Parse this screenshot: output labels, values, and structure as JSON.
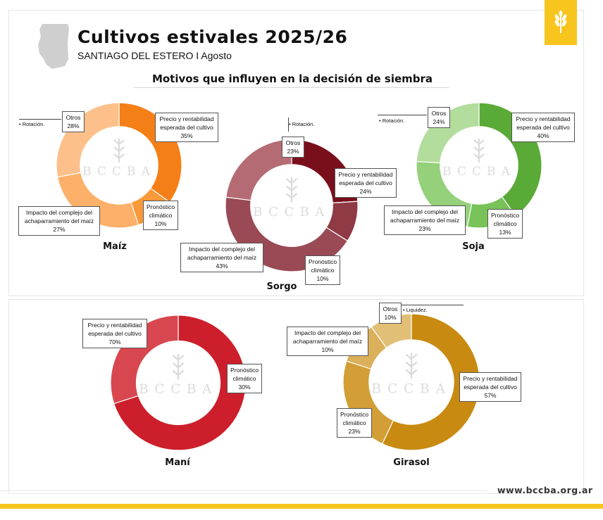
{
  "header": {
    "title": "Cultivos estivales 2025/26",
    "subtitle": "SANTIAGO DEL ESTERO I Agosto",
    "section_title": "Motivos que influyen en la decisión de siembra"
  },
  "watermark": "BCCBA",
  "footer": {
    "url": "www.bccba.org.ar"
  },
  "colors": {
    "brand_yellow": "#f7c51d"
  },
  "chart_data": [
    {
      "type": "pie",
      "title": "Maíz",
      "labels": [
        "Precio y rentabilidad esperada del cultivo",
        "Pronóstico climático",
        "Impacto del complejo del achaparramiento del maíz",
        "Otros"
      ],
      "values": [
        35,
        10,
        27,
        28
      ],
      "colors": [
        "#f57f17",
        "#f9993a",
        "#fcb069",
        "#fdc08a"
      ],
      "annotation": "Rotación."
    },
    {
      "type": "pie",
      "title": "Sorgo",
      "labels": [
        "Precio y rentabilidad esperada del cultivo",
        "Pronóstico climático",
        "Impacto del complejo del achaparramiento del maíz",
        "Otros"
      ],
      "values": [
        24,
        10,
        43,
        23
      ],
      "colors": [
        "#7a0f1c",
        "#8f3a44",
        "#9a4a55",
        "#b56b74"
      ],
      "annotation": "Rotación."
    },
    {
      "type": "pie",
      "title": "Soja",
      "labels": [
        "Precio y rentabilidad esperada del cultivo",
        "Pronóstico climático",
        "Impacto del complejo del achaparramiento del maíz",
        "Otros"
      ],
      "values": [
        40,
        13,
        23,
        24
      ],
      "colors": [
        "#5aaa37",
        "#78c257",
        "#95d07a",
        "#b3dd9c"
      ],
      "annotation": "Rotación."
    },
    {
      "type": "pie",
      "title": "Maní",
      "labels": [
        "Precio y rentabilidad esperada del cultivo",
        "Pronóstico climático"
      ],
      "values": [
        70,
        30
      ],
      "colors": [
        "#cc1f2b",
        "#d8474f"
      ],
      "annotation": ""
    },
    {
      "type": "pie",
      "title": "Girasol",
      "labels": [
        "Precio y rentabilidad esperada del cultivo",
        "Pronóstico climático",
        "Impacto del complejo del achaparramiento del maíz",
        "Otros"
      ],
      "values": [
        57,
        23,
        10,
        10
      ],
      "colors": [
        "#c88a10",
        "#d29e35",
        "#dbb05a",
        "#e2bf77"
      ],
      "annotation": "Liquidez."
    }
  ]
}
